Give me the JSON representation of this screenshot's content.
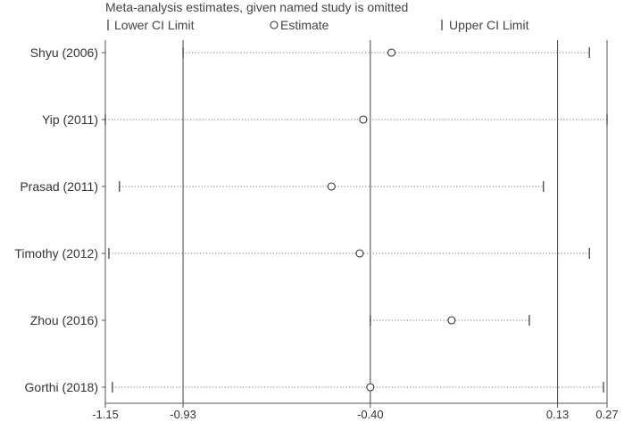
{
  "chart_data": {
    "type": "forest-sensitivity",
    "title": "Meta-analysis estimates, given named study is omitted",
    "legend": {
      "lower_label": "Lower CI Limit",
      "estimate_label": "Estimate",
      "upper_label": "Upper CI Limit"
    },
    "xlim": [
      -1.15,
      0.27
    ],
    "x_ticks": [
      -1.15,
      -0.93,
      -0.4,
      0.13,
      0.27
    ],
    "x_tick_labels": [
      "-1.15",
      "-0.93",
      "-0.40",
      "0.13",
      "0.27"
    ],
    "reference_lines": [
      -0.93,
      -0.4,
      0.13
    ],
    "studies": [
      {
        "label": "Shyu (2006)",
        "lower": -0.93,
        "estimate": -0.34,
        "upper": 0.22
      },
      {
        "label": "Yip (2011)",
        "lower": -1.15,
        "estimate": -0.42,
        "upper": 0.27
      },
      {
        "label": "Prasad (2011)",
        "lower": -1.11,
        "estimate": -0.51,
        "upper": 0.09
      },
      {
        "label": "Timothy (2012)",
        "lower": -1.14,
        "estimate": -0.43,
        "upper": 0.22
      },
      {
        "label": "Zhou (2016)",
        "lower": -0.4,
        "estimate": -0.17,
        "upper": 0.05
      },
      {
        "label": "Gorthi (2018)",
        "lower": -1.13,
        "estimate": -0.4,
        "upper": 0.26
      }
    ]
  }
}
